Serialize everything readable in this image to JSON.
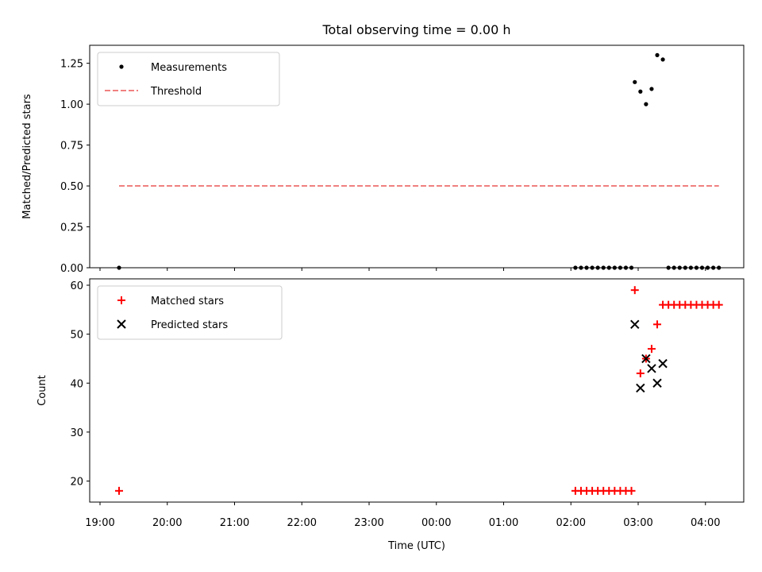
{
  "chart_data": {
    "title": "Total observing time = 0.00 h",
    "xlabel": "Time (UTC)",
    "x_tick_labels": [
      "19:00",
      "20:00",
      "21:00",
      "22:00",
      "23:00",
      "00:00",
      "01:00",
      "02:00",
      "03:00",
      "04:00"
    ],
    "panels": [
      {
        "type": "scatter",
        "ylabel": "Matched/Predicted stars",
        "ylim": [
          0,
          1.36
        ],
        "yticks": [
          0.0,
          0.25,
          0.5,
          0.75,
          1.0,
          1.25
        ],
        "y_tick_labels": [
          "0.00",
          "0.25",
          "0.50",
          "0.75",
          "1.00",
          "1.25"
        ],
        "legend_position": "upper-left",
        "series": [
          {
            "name": "Measurements",
            "kind": "points",
            "color": "#000000",
            "x": [
              "19:17",
              "02:04",
              "02:09",
              "02:14",
              "02:19",
              "02:24",
              "02:29",
              "02:34",
              "02:39",
              "02:44",
              "02:49",
              "02:54",
              "02:57",
              "03:02",
              "03:07",
              "03:12",
              "03:17",
              "03:22",
              "03:27",
              "03:32",
              "03:37",
              "03:42",
              "03:47",
              "03:52",
              "03:57",
              "04:02",
              "04:07",
              "04:12"
            ],
            "y": [
              0,
              0,
              0,
              0,
              0,
              0,
              0,
              0,
              0,
              0,
              0,
              0,
              1.135,
              1.077,
              1.0,
              1.093,
              1.3,
              1.273,
              0,
              0,
              0,
              0,
              0,
              0,
              0,
              0,
              0,
              0
            ]
          },
          {
            "name": "Threshold",
            "kind": "dashed-line",
            "color": "#f08080",
            "x": [
              "19:17",
              "04:12"
            ],
            "y": [
              0.5,
              0.5
            ]
          }
        ]
      },
      {
        "type": "scatter",
        "ylabel": "Count",
        "ylim": [
          15.7,
          61.3
        ],
        "yticks": [
          20,
          30,
          40,
          50,
          60
        ],
        "y_tick_labels": [
          "20",
          "30",
          "40",
          "50",
          "60"
        ],
        "legend_position": "upper-left",
        "series": [
          {
            "name": "Matched stars",
            "marker": "plus",
            "color": "#ff0000",
            "x": [
              "19:17",
              "02:04",
              "02:09",
              "02:14",
              "02:19",
              "02:24",
              "02:29",
              "02:34",
              "02:39",
              "02:44",
              "02:49",
              "02:54",
              "02:57",
              "03:02",
              "03:07",
              "03:12",
              "03:17",
              "03:22",
              "03:27",
              "03:32",
              "03:37",
              "03:42",
              "03:47",
              "03:52",
              "03:57",
              "04:02",
              "04:07",
              "04:12"
            ],
            "y": [
              18,
              18,
              18,
              18,
              18,
              18,
              18,
              18,
              18,
              18,
              18,
              18,
              59,
              42,
              45,
              47,
              52,
              56,
              56,
              56,
              56,
              56,
              56,
              56,
              56,
              56,
              56,
              56
            ]
          },
          {
            "name": "Predicted stars",
            "marker": "x",
            "color": "#000000",
            "x": [
              "02:57",
              "03:02",
              "03:07",
              "03:12",
              "03:17",
              "03:22"
            ],
            "y": [
              52,
              39,
              45,
              43,
              40,
              44
            ]
          }
        ]
      }
    ]
  }
}
